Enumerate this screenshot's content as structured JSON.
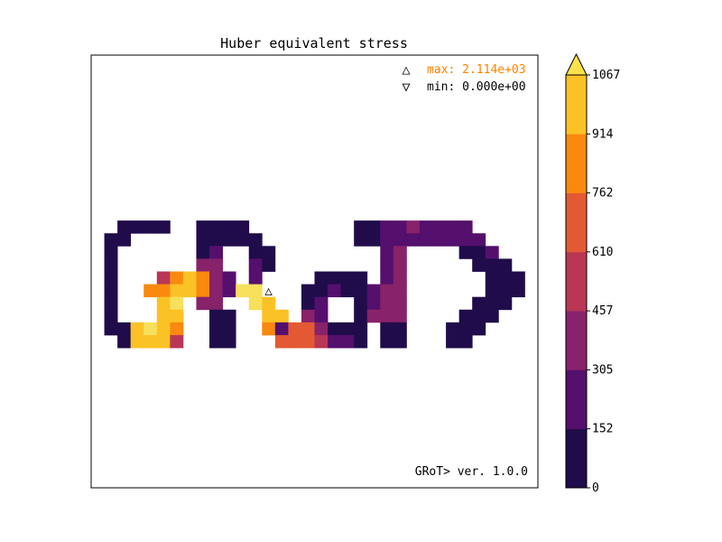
{
  "chart_data": {
    "type": "heatmap",
    "title": "Huber equivalent stress",
    "grid_size": [
      34,
      34
    ],
    "mesh_description": "rasterized letters forming the word GRoT>",
    "annotations": {
      "max_label": "max: 2.114e+03",
      "min_label": "min: 0.000e+00",
      "max_marker": "△",
      "min_marker": "▽",
      "max_color": "#ff8000",
      "min_color": "#000000",
      "max_location": {
        "col": 13,
        "row": 18
      },
      "min_location": {
        "col": 1,
        "row": 13
      },
      "footer": "GRoT> ver. 1.0.0"
    },
    "colorbar": {
      "ticks": [
        "0",
        "152",
        "305",
        "457",
        "610",
        "762",
        "914",
        "1067"
      ],
      "bins": [
        {
          "from": 0,
          "to": 152,
          "color": "#200c4a"
        },
        {
          "from": 152,
          "to": 305,
          "color": "#550f6d"
        },
        {
          "from": 305,
          "to": 457,
          "color": "#88226a"
        },
        {
          "from": 457,
          "to": 610,
          "color": "#ba3655"
        },
        {
          "from": 610,
          "to": 762,
          "color": "#e35933"
        },
        {
          "from": 762,
          "to": 914,
          "color": "#f9890f"
        },
        {
          "from": 914,
          "to": 1067,
          "color": "#fbc226"
        }
      ],
      "extend_max_color": "#fce14a"
    },
    "color_scale": [
      "#200c4a",
      "#550f6d",
      "#88226a",
      "#ba3655",
      "#e35933",
      "#f9890f",
      "#fbc226",
      "#f6e05c"
    ],
    "cells": [
      [
        13,
        [
          [
            2,
            0
          ],
          [
            3,
            0
          ],
          [
            4,
            0
          ],
          [
            5,
            0
          ],
          [
            8,
            0
          ],
          [
            9,
            0
          ],
          [
            10,
            0
          ],
          [
            11,
            0
          ],
          [
            20,
            0
          ],
          [
            21,
            0
          ],
          [
            22,
            1
          ],
          [
            23,
            1
          ],
          [
            24,
            2
          ],
          [
            25,
            1
          ],
          [
            26,
            1
          ],
          [
            27,
            1
          ],
          [
            28,
            1
          ]
        ]
      ],
      [
        14,
        [
          [
            1,
            0
          ],
          [
            2,
            0
          ],
          [
            8,
            0
          ],
          [
            9,
            0
          ],
          [
            10,
            0
          ],
          [
            11,
            0
          ],
          [
            12,
            0
          ],
          [
            20,
            0
          ],
          [
            21,
            0
          ],
          [
            22,
            1
          ],
          [
            23,
            1
          ],
          [
            24,
            1
          ],
          [
            25,
            1
          ],
          [
            26,
            1
          ],
          [
            27,
            1
          ],
          [
            28,
            1
          ],
          [
            29,
            1
          ]
        ]
      ],
      [
        15,
        [
          [
            1,
            0
          ],
          [
            8,
            0
          ],
          [
            9,
            1
          ],
          [
            12,
            0
          ],
          [
            13,
            0
          ],
          [
            22,
            1
          ],
          [
            23,
            2
          ],
          [
            28,
            0
          ],
          [
            29,
            0
          ],
          [
            30,
            1
          ]
        ]
      ],
      [
        16,
        [
          [
            1,
            0
          ],
          [
            8,
            2
          ],
          [
            9,
            2
          ],
          [
            12,
            1
          ],
          [
            13,
            0
          ],
          [
            22,
            1
          ],
          [
            23,
            2
          ],
          [
            29,
            0
          ],
          [
            30,
            0
          ],
          [
            31,
            0
          ]
        ]
      ],
      [
        17,
        [
          [
            1,
            0
          ],
          [
            5,
            3
          ],
          [
            6,
            5
          ],
          [
            7,
            6
          ],
          [
            8,
            5
          ],
          [
            9,
            2
          ],
          [
            10,
            1
          ],
          [
            12,
            1
          ],
          [
            17,
            0
          ],
          [
            18,
            0
          ],
          [
            19,
            0
          ],
          [
            20,
            0
          ],
          [
            22,
            1
          ],
          [
            23,
            2
          ],
          [
            30,
            0
          ],
          [
            31,
            0
          ],
          [
            32,
            0
          ]
        ]
      ],
      [
        18,
        [
          [
            1,
            0
          ],
          [
            4,
            5
          ],
          [
            5,
            5
          ],
          [
            6,
            6
          ],
          [
            7,
            6
          ],
          [
            8,
            5
          ],
          [
            9,
            2
          ],
          [
            10,
            1
          ],
          [
            11,
            7
          ],
          [
            12,
            7
          ],
          [
            16,
            0
          ],
          [
            17,
            0
          ],
          [
            18,
            1
          ],
          [
            19,
            0
          ],
          [
            20,
            0
          ],
          [
            21,
            1
          ],
          [
            22,
            2
          ],
          [
            23,
            2
          ],
          [
            30,
            0
          ],
          [
            31,
            0
          ],
          [
            32,
            0
          ]
        ]
      ],
      [
        19,
        [
          [
            1,
            0
          ],
          [
            5,
            6
          ],
          [
            6,
            7
          ],
          [
            8,
            2
          ],
          [
            9,
            2
          ],
          [
            12,
            7
          ],
          [
            13,
            6
          ],
          [
            16,
            0
          ],
          [
            17,
            1
          ],
          [
            20,
            0
          ],
          [
            21,
            1
          ],
          [
            22,
            2
          ],
          [
            23,
            2
          ],
          [
            29,
            0
          ],
          [
            30,
            0
          ],
          [
            31,
            0
          ]
        ]
      ],
      [
        20,
        [
          [
            1,
            0
          ],
          [
            5,
            6
          ],
          [
            6,
            6
          ],
          [
            9,
            0
          ],
          [
            10,
            0
          ],
          [
            13,
            6
          ],
          [
            14,
            6
          ],
          [
            16,
            2
          ],
          [
            17,
            1
          ],
          [
            20,
            0
          ],
          [
            21,
            2
          ],
          [
            22,
            2
          ],
          [
            23,
            2
          ],
          [
            28,
            0
          ],
          [
            29,
            0
          ],
          [
            30,
            0
          ]
        ]
      ],
      [
        21,
        [
          [
            1,
            0
          ],
          [
            2,
            0
          ],
          [
            3,
            6
          ],
          [
            4,
            7
          ],
          [
            5,
            6
          ],
          [
            6,
            5
          ],
          [
            9,
            0
          ],
          [
            10,
            0
          ],
          [
            13,
            5
          ],
          [
            14,
            1
          ],
          [
            15,
            4
          ],
          [
            16,
            4
          ],
          [
            17,
            2
          ],
          [
            18,
            0
          ],
          [
            19,
            0
          ],
          [
            20,
            0
          ],
          [
            22,
            0
          ],
          [
            23,
            0
          ],
          [
            27,
            0
          ],
          [
            28,
            0
          ],
          [
            29,
            0
          ]
        ]
      ],
      [
        22,
        [
          [
            2,
            0
          ],
          [
            3,
            6
          ],
          [
            4,
            6
          ],
          [
            5,
            6
          ],
          [
            6,
            3
          ],
          [
            9,
            0
          ],
          [
            10,
            0
          ],
          [
            14,
            4
          ],
          [
            15,
            4
          ],
          [
            16,
            4
          ],
          [
            17,
            3
          ],
          [
            18,
            1
          ],
          [
            19,
            1
          ],
          [
            20,
            0
          ],
          [
            22,
            0
          ],
          [
            23,
            0
          ],
          [
            27,
            0
          ],
          [
            28,
            0
          ]
        ]
      ]
    ]
  }
}
